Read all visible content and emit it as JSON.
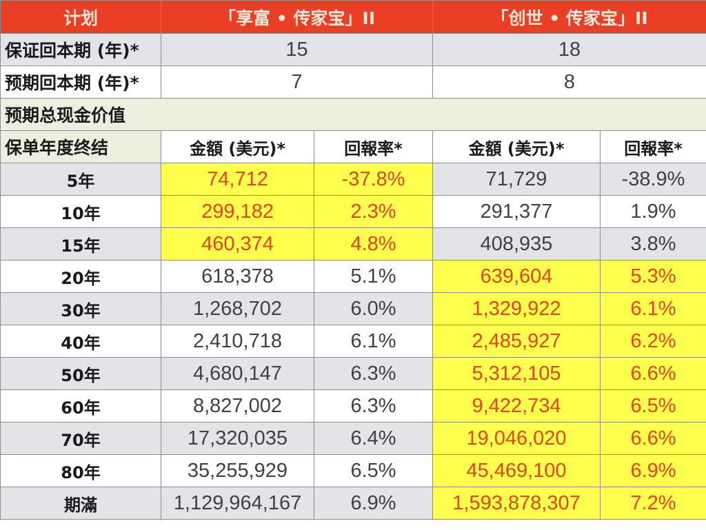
{
  "header": {
    "col_plan": "计划",
    "plan_a": "「享富 • 传家宝」II",
    "plan_b": "「创世 • 传家宝」II"
  },
  "guaranteed_breakeven": {
    "label": "保证回本期 (年)*",
    "plan_a": "15",
    "plan_b": "18"
  },
  "expected_breakeven": {
    "label": "预期回本期 (年)*",
    "plan_a": "7",
    "plan_b": "8"
  },
  "section_title": "预期总现金价值",
  "subheader": {
    "year_end": "保单年度终结",
    "amount_a": "金額 (美元)*",
    "return_a": "回報率*",
    "amount_b": "金額 (美元)*",
    "return_b": "回報率*"
  },
  "colors": {
    "header_bg": "#ea3f24",
    "highlight_bg": "#ffff4d",
    "highlight_text": "#e2461c",
    "section_bg": "#ebf0de",
    "gray_row": "#e2e4e8"
  },
  "rows": [
    {
      "year": "5年",
      "amount_a": "74,712",
      "return_a": "-37.8%",
      "amount_b": "71,729",
      "return_b": "-38.9%",
      "highlight": "a"
    },
    {
      "year": "10年",
      "amount_a": "299,182",
      "return_a": "2.3%",
      "amount_b": "291,377",
      "return_b": "1.9%",
      "highlight": "a"
    },
    {
      "year": "15年",
      "amount_a": "460,374",
      "return_a": "4.8%",
      "amount_b": "408,935",
      "return_b": "3.8%",
      "highlight": "a"
    },
    {
      "year": "20年",
      "amount_a": "618,378",
      "return_a": "5.1%",
      "amount_b": "639,604",
      "return_b": "5.3%",
      "highlight": "b"
    },
    {
      "year": "30年",
      "amount_a": "1,268,702",
      "return_a": "6.0%",
      "amount_b": "1,329,922",
      "return_b": "6.1%",
      "highlight": "b"
    },
    {
      "year": "40年",
      "amount_a": "2,410,718",
      "return_a": "6.1%",
      "amount_b": "2,485,927",
      "return_b": "6.2%",
      "highlight": "b"
    },
    {
      "year": "50年",
      "amount_a": "4,680,147",
      "return_a": "6.3%",
      "amount_b": "5,312,105",
      "return_b": "6.6%",
      "highlight": "b"
    },
    {
      "year": "60年",
      "amount_a": "8,827,002",
      "return_a": "6.3%",
      "amount_b": "9,422,734",
      "return_b": "6.5%",
      "highlight": "b"
    },
    {
      "year": "70年",
      "amount_a": "17,320,035",
      "return_a": "6.4%",
      "amount_b": "19,046,020",
      "return_b": "6.6%",
      "highlight": "b"
    },
    {
      "year": "80年",
      "amount_a": "35,255,929",
      "return_a": "6.5%",
      "amount_b": "45,469,100",
      "return_b": "6.9%",
      "highlight": "b"
    },
    {
      "year": "期滿",
      "amount_a": "1,129,964,167",
      "return_a": "6.9%",
      "amount_b": "1,593,878,307",
      "return_b": "7.2%",
      "highlight": "b"
    }
  ]
}
